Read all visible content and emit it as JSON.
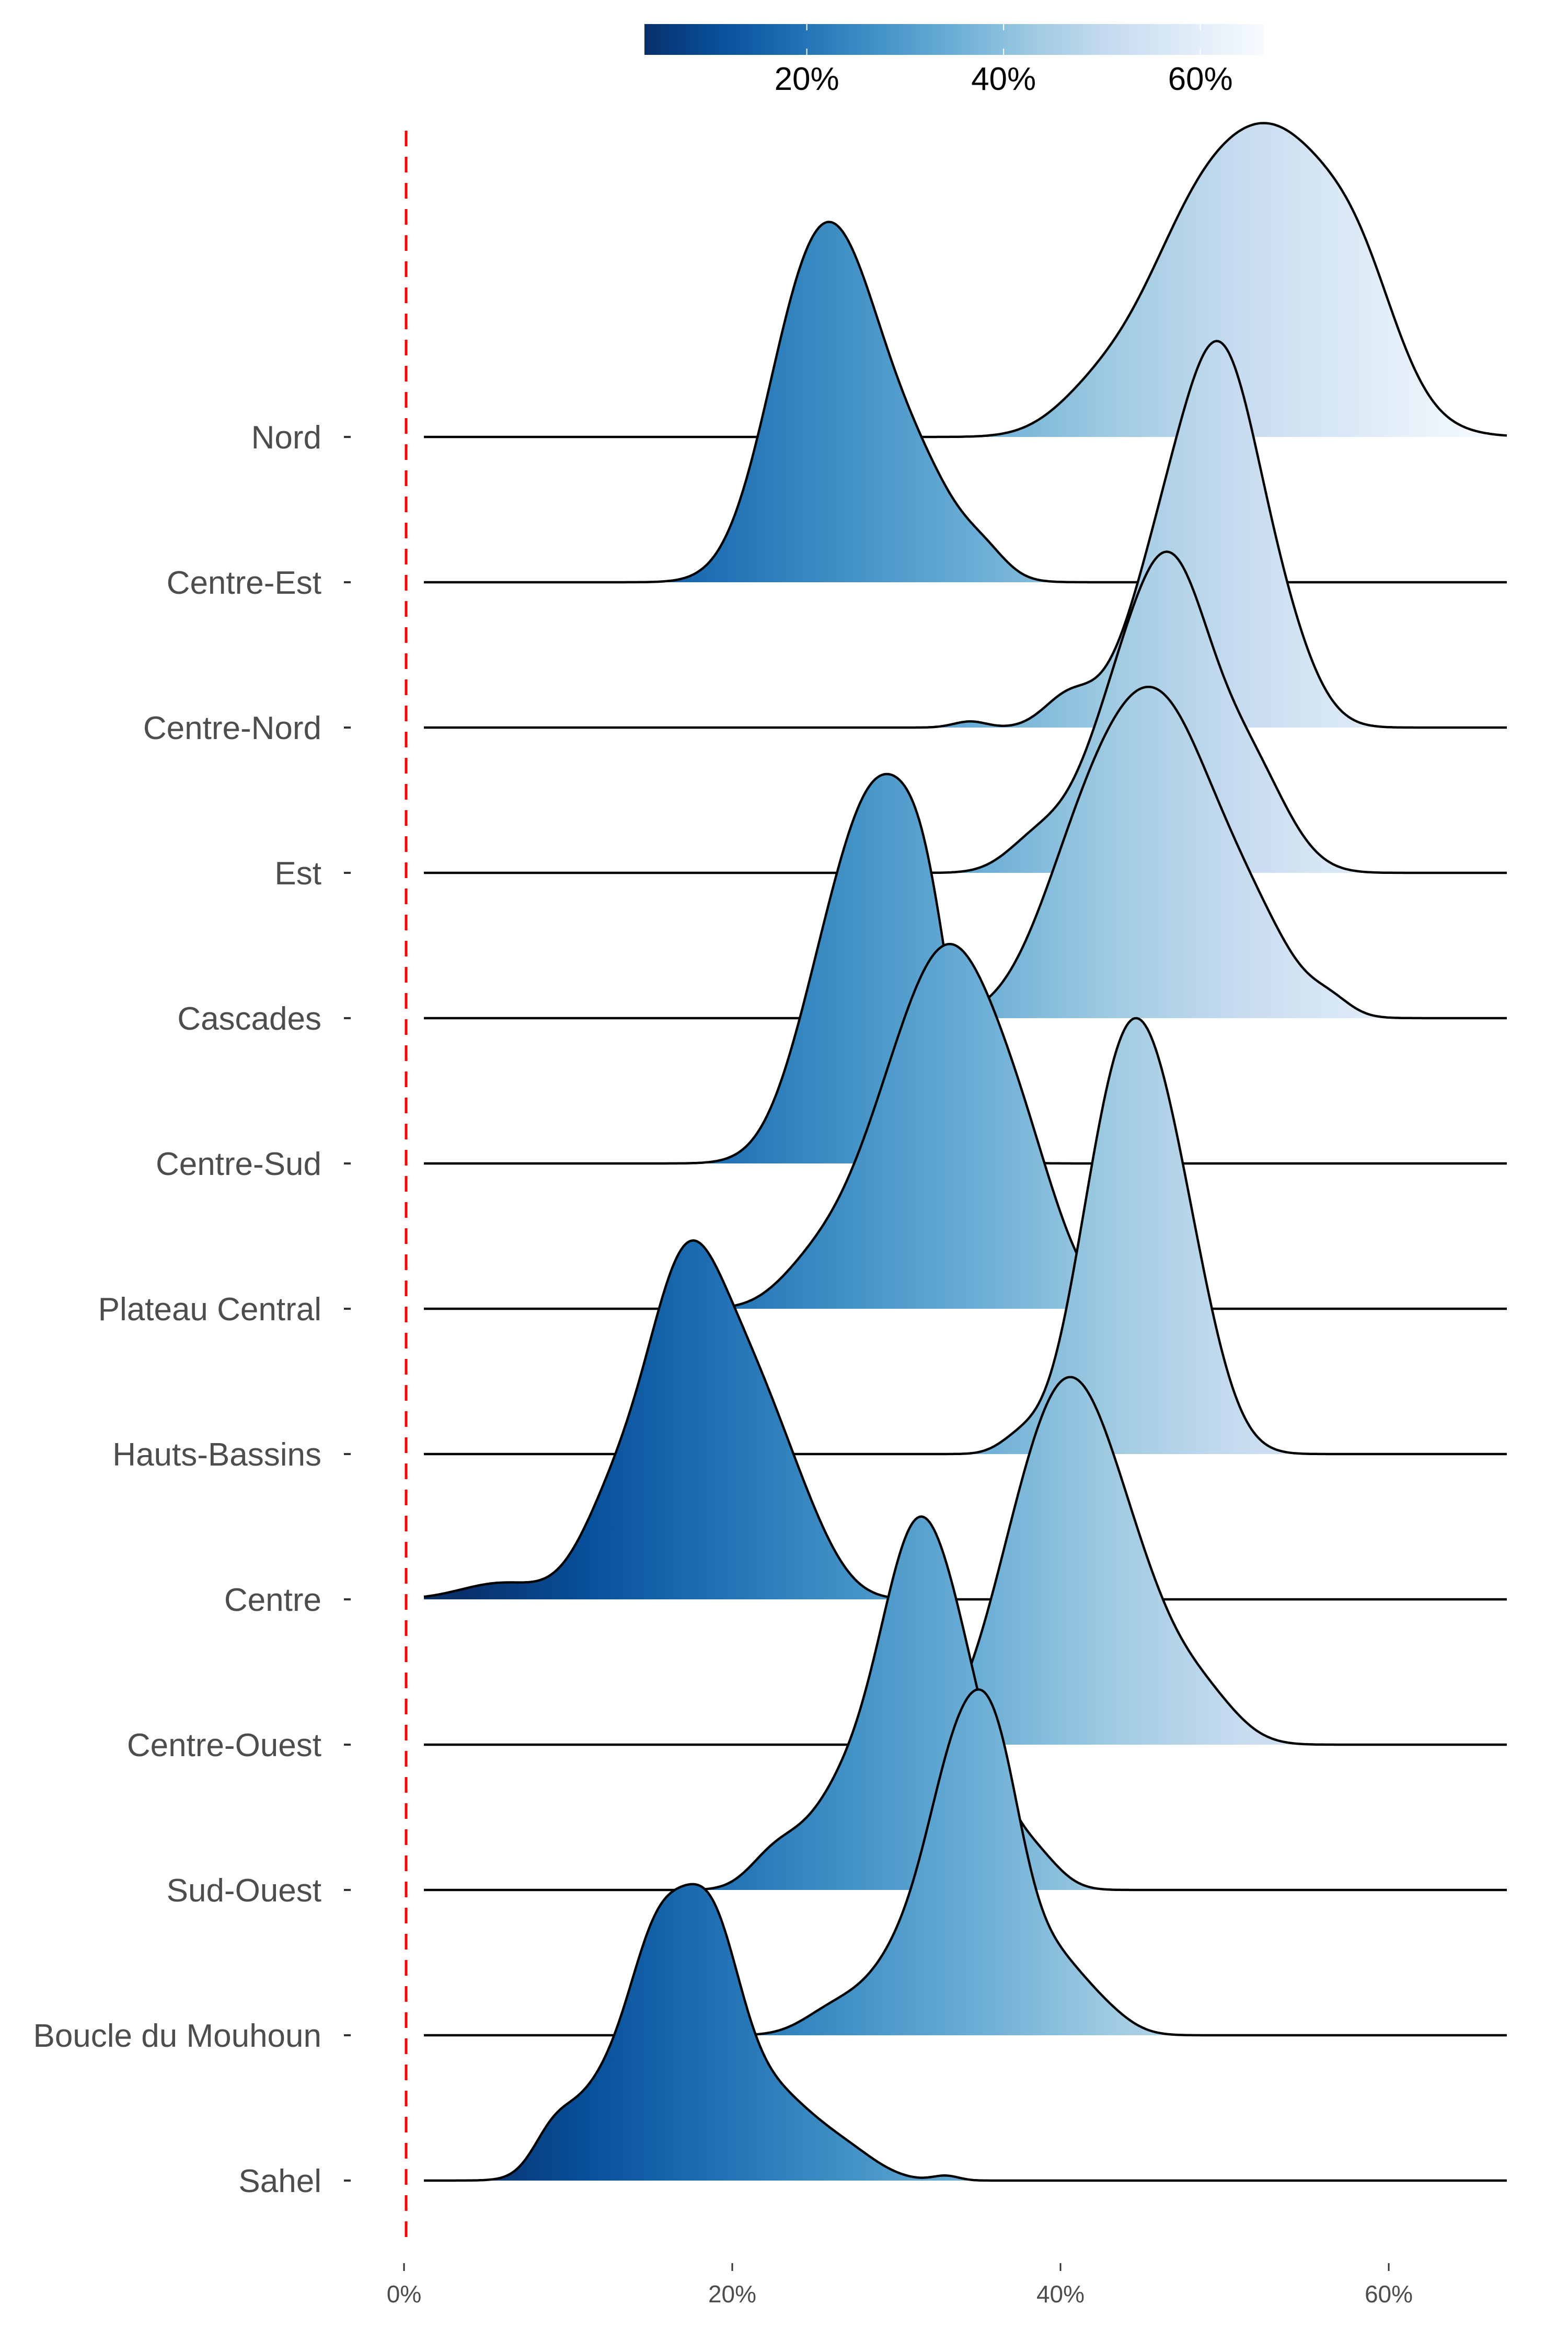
{
  "chart_data": {
    "type": "ridgeline",
    "title": "",
    "xlabel": "",
    "ylabel": "",
    "xlim": [
      0,
      67
    ],
    "x_ticks": [
      0,
      20,
      40,
      60
    ],
    "x_tick_labels": [
      "0%",
      "20%",
      "40%",
      "60%"
    ],
    "reference_line": {
      "x": 0,
      "color": "#ff0000",
      "style": "dashed"
    },
    "grid": false,
    "legend": {
      "placement": "top",
      "type": "colorbar",
      "range": [
        3.5,
        66.5
      ],
      "ticks": [
        20,
        40,
        60
      ],
      "tick_labels": [
        "20%",
        "40%",
        "60%"
      ],
      "colors": [
        "#08306b",
        "#08519c",
        "#2171b5",
        "#4292c6",
        "#6baed6",
        "#9ecae1",
        "#c6dbef",
        "#deebf7",
        "#f7fbff"
      ]
    },
    "categories": [
      "Nord",
      "Centre-Est",
      "Centre-Nord",
      "Est",
      "Cascades",
      "Centre-Sud",
      "Plateau Central",
      "Hauts-Bassins",
      "Centre",
      "Centre-Ouest",
      "Sud-Ouest",
      "Boucle du Mouhoun",
      "Sahel"
    ],
    "series": [
      {
        "name": "Nord",
        "mode": 53.5,
        "peak_height_rows": 2.16,
        "components": [
          [
            53.5,
            4.2,
            1.0
          ],
          [
            47.5,
            3.2,
            0.45
          ],
          [
            42,
            2.5,
            0.12
          ],
          [
            58.5,
            2.2,
            0.22
          ]
        ]
      },
      {
        "name": "Centre-Est",
        "mode": 26.8,
        "peak_height_rows": 2.48,
        "components": [
          [
            26.8,
            2.6,
            1.0
          ],
          [
            23.6,
            2.4,
            0.6
          ],
          [
            31.5,
            2.5,
            0.35
          ],
          [
            35.5,
            1.3,
            0.06
          ]
        ]
      },
      {
        "name": "Centre-Nord",
        "mode": 49.8,
        "peak_height_rows": 2.66,
        "components": [
          [
            50.0,
            2.2,
            1.0
          ],
          [
            46.5,
            2.4,
            0.55
          ],
          [
            53.5,
            2.0,
            0.25
          ],
          [
            40.5,
            1.5,
            0.1
          ],
          [
            34.5,
            1.0,
            0.02
          ]
        ]
      },
      {
        "name": "Est",
        "mode": 46.7,
        "peak_height_rows": 2.21,
        "components": [
          [
            47.0,
            2.3,
            1.0
          ],
          [
            43.5,
            2.4,
            0.55
          ],
          [
            51.5,
            2.3,
            0.4
          ],
          [
            38.5,
            1.8,
            0.12
          ]
        ]
      },
      {
        "name": "Cascades",
        "mode": 45.9,
        "peak_height_rows": 2.28,
        "components": [
          [
            46.0,
            3.5,
            1.0
          ],
          [
            41.0,
            2.8,
            0.35
          ],
          [
            52.0,
            2.5,
            0.2
          ],
          [
            56.5,
            1.2,
            0.04
          ]
        ]
      },
      {
        "name": "Centre-Sud",
        "mode": 29.0,
        "peak_height_rows": 2.68,
        "components": [
          [
            29.3,
            2.6,
            1.0
          ],
          [
            25.5,
            2.3,
            0.35
          ],
          [
            32.0,
            1.5,
            0.3
          ]
        ]
      },
      {
        "name": "Plateau Central",
        "mode": 33.2,
        "peak_height_rows": 2.51,
        "components": [
          [
            33.5,
            3.0,
            1.0
          ],
          [
            29.0,
            2.8,
            0.35
          ],
          [
            38.0,
            2.3,
            0.3
          ],
          [
            24.5,
            2.0,
            0.08
          ]
        ]
      },
      {
        "name": "Hauts-Bassins",
        "mode": 44.8,
        "peak_height_rows": 3.0,
        "components": [
          [
            44.8,
            2.3,
            1.0
          ],
          [
            42.0,
            2.0,
            0.35
          ],
          [
            48.0,
            2.0,
            0.3
          ],
          [
            37.5,
            1.2,
            0.04
          ]
        ]
      },
      {
        "name": "Centre",
        "mode": 17.5,
        "peak_height_rows": 2.47,
        "components": [
          [
            17.2,
            2.5,
            1.0
          ],
          [
            21.5,
            2.2,
            0.45
          ],
          [
            12.5,
            2.0,
            0.22
          ],
          [
            24.5,
            2.0,
            0.15
          ],
          [
            6.0,
            2.5,
            0.05
          ]
        ]
      },
      {
        "name": "Centre-Ouest",
        "mode": 40.5,
        "peak_height_rows": 2.53,
        "components": [
          [
            40.5,
            2.6,
            1.0
          ],
          [
            37.0,
            2.3,
            0.35
          ],
          [
            44.5,
            2.6,
            0.45
          ],
          [
            49.0,
            2.0,
            0.12
          ]
        ]
      },
      {
        "name": "Sud-Ouest",
        "mode": 31.0,
        "peak_height_rows": 2.57,
        "components": [
          [
            31.0,
            2.1,
            1.0
          ],
          [
            34.0,
            2.2,
            0.6
          ],
          [
            27.0,
            2.5,
            0.35
          ],
          [
            22.5,
            1.5,
            0.1
          ],
          [
            38.5,
            1.5,
            0.1
          ]
        ]
      },
      {
        "name": "Boucle du Mouhoun",
        "mode": 35.8,
        "peak_height_rows": 2.38,
        "components": [
          [
            33.8,
            1.8,
            0.8
          ],
          [
            36.2,
            1.6,
            0.75
          ],
          [
            31.0,
            2.5,
            0.35
          ],
          [
            39.5,
            2.2,
            0.3
          ],
          [
            26.0,
            1.8,
            0.08
          ],
          [
            43.0,
            1.5,
            0.04
          ]
        ]
      },
      {
        "name": "Sahel",
        "mode": 18.6,
        "peak_height_rows": 2.04,
        "components": [
          [
            15.5,
            1.8,
            0.85
          ],
          [
            18.7,
            1.8,
            0.9
          ],
          [
            12.0,
            2.2,
            0.35
          ],
          [
            22.5,
            2.5,
            0.35
          ],
          [
            9.0,
            1.2,
            0.12
          ],
          [
            27.0,
            2.0,
            0.1
          ],
          [
            33.0,
            0.8,
            0.02
          ]
        ]
      }
    ]
  }
}
